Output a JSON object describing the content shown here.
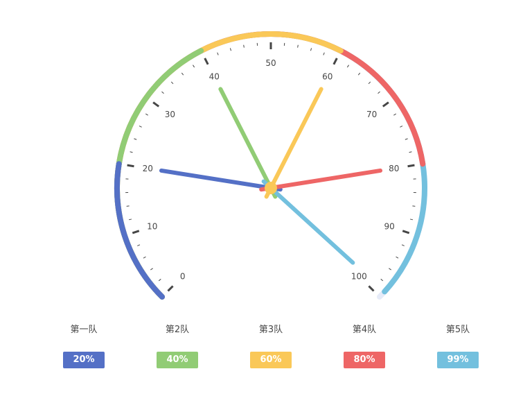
{
  "chart_data": {
    "type": "gauge",
    "min": 0,
    "max": 100,
    "start_angle_deg": 225,
    "end_angle_deg": -45,
    "tick_labels": [
      "0",
      "10",
      "20",
      "30",
      "40",
      "50",
      "60",
      "70",
      "80",
      "90",
      "100"
    ],
    "series": [
      {
        "name": "第一队",
        "value": 20,
        "detail": "20%",
        "color": "#5470c6"
      },
      {
        "name": "第2队",
        "value": 40,
        "detail": "40%",
        "color": "#91cc75"
      },
      {
        "name": "第3队",
        "value": 60,
        "detail": "60%",
        "color": "#fac858"
      },
      {
        "name": "第4队",
        "value": 80,
        "detail": "80%",
        "color": "#ee6666"
      },
      {
        "name": "第5队",
        "value": 99,
        "detail": "99%",
        "color": "#73c0de"
      }
    ],
    "track_color": "#e6ebf8",
    "tick_color": "#464646",
    "anchor_color": "#fac858"
  }
}
